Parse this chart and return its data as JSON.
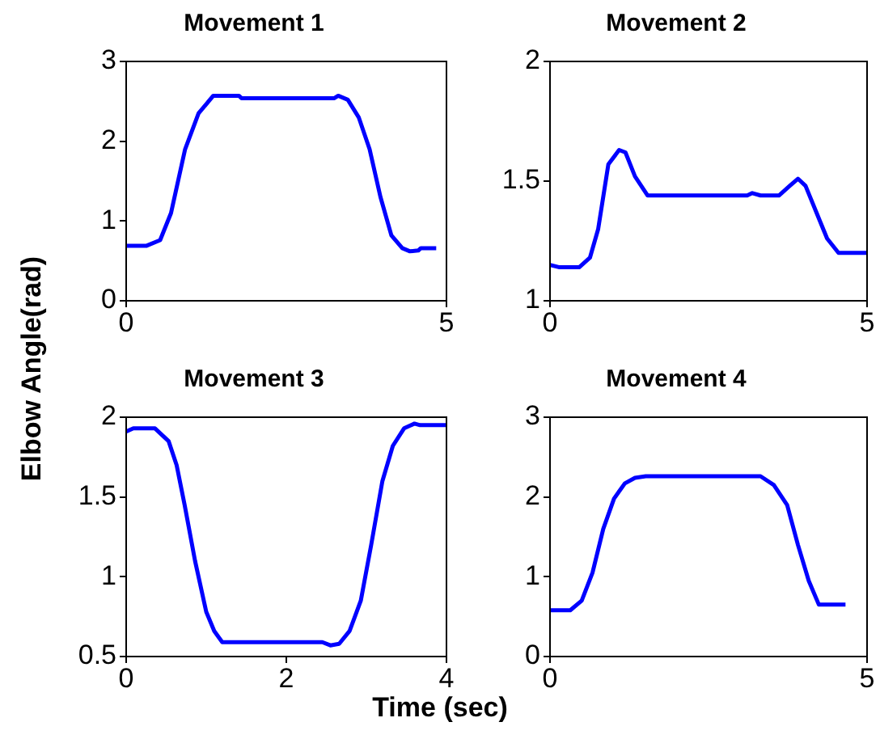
{
  "chart_data": [
    {
      "type": "line",
      "title": "Movement 1",
      "ylabel": "Elbow Angle(rad)",
      "color": "#0000ff",
      "xlim": [
        0,
        5
      ],
      "xticks": [
        0,
        5
      ],
      "ylim": [
        0,
        3
      ],
      "yticks": [
        0,
        1,
        2,
        3
      ],
      "x": [
        0,
        0.32,
        0.53,
        0.7,
        0.92,
        1.13,
        1.36,
        1.76,
        1.8,
        3.25,
        3.31,
        3.46,
        3.63,
        3.8,
        3.97,
        4.14,
        4.31,
        4.43,
        4.56,
        4.6,
        4.84
      ],
      "values": [
        0.69,
        0.69,
        0.76,
        1.1,
        1.9,
        2.35,
        2.57,
        2.57,
        2.54,
        2.54,
        2.57,
        2.52,
        2.3,
        1.9,
        1.3,
        0.82,
        0.66,
        0.62,
        0.63,
        0.66,
        0.66
      ]
    },
    {
      "type": "line",
      "title": "Movement 2",
      "color": "#0000ff",
      "xlim": [
        0,
        5
      ],
      "xticks": [
        0,
        5
      ],
      "ylim": [
        1,
        2
      ],
      "yticks": [
        1,
        1.5,
        2
      ],
      "x": [
        0,
        0.15,
        0.46,
        0.63,
        0.76,
        0.92,
        1.09,
        1.19,
        1.34,
        1.54,
        3.11,
        3.19,
        3.32,
        3.61,
        3.78,
        3.91,
        4.03,
        4.2,
        4.37,
        4.55,
        5
      ],
      "values": [
        1.15,
        1.14,
        1.14,
        1.18,
        1.3,
        1.57,
        1.63,
        1.62,
        1.52,
        1.44,
        1.44,
        1.45,
        1.44,
        1.44,
        1.48,
        1.51,
        1.48,
        1.37,
        1.26,
        1.2,
        1.2
      ]
    },
    {
      "type": "line",
      "title": "Movement 3",
      "xlabel": "Time (sec)",
      "color": "#0000ff",
      "xlim": [
        0,
        4
      ],
      "xticks": [
        0,
        2,
        4
      ],
      "ylim": [
        0.5,
        2
      ],
      "yticks": [
        0.5,
        1,
        1.5,
        2
      ],
      "x": [
        0,
        0.09,
        0.36,
        0.53,
        0.63,
        0.73,
        0.86,
        1,
        1.1,
        1.2,
        2.45,
        2.55,
        2.66,
        2.79,
        2.93,
        3.06,
        3.2,
        3.33,
        3.47,
        3.6,
        3.67,
        4
      ],
      "values": [
        1.91,
        1.93,
        1.93,
        1.85,
        1.7,
        1.45,
        1.1,
        0.78,
        0.66,
        0.59,
        0.59,
        0.57,
        0.58,
        0.66,
        0.85,
        1.2,
        1.6,
        1.82,
        1.93,
        1.96,
        1.95,
        1.95
      ]
    },
    {
      "type": "line",
      "title": "Movement 4",
      "color": "#0000ff",
      "xlim": [
        0,
        5
      ],
      "xticks": [
        0,
        5
      ],
      "ylim": [
        0,
        3
      ],
      "yticks": [
        0,
        1,
        2,
        3
      ],
      "x": [
        0,
        0.32,
        0.5,
        0.67,
        0.84,
        1.01,
        1.18,
        1.34,
        1.51,
        3.32,
        3.53,
        3.74,
        3.91,
        4.08,
        4.24,
        4.66
      ],
      "values": [
        0.58,
        0.58,
        0.7,
        1.05,
        1.6,
        1.98,
        2.17,
        2.24,
        2.26,
        2.26,
        2.15,
        1.9,
        1.4,
        0.95,
        0.65,
        0.65
      ]
    }
  ]
}
